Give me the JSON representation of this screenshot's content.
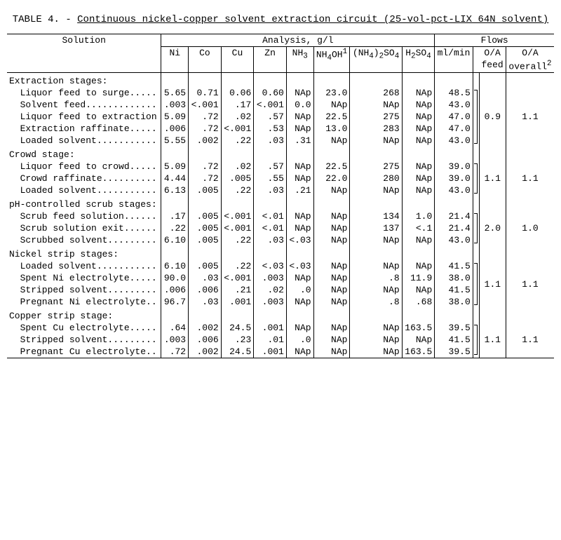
{
  "title_prefix": "TABLE 4. - ",
  "title_main": "Continuous nickel-copper solvent extraction circuit (25-vol-pct-LIX 64N solvent)",
  "headers": {
    "solution": "Solution",
    "analysis": "Analysis, g/l",
    "flows": "Flows",
    "ni": "Ni",
    "co": "Co",
    "cu": "Cu",
    "zn": "Zn",
    "nh3": "NH",
    "nh3_sub": "3",
    "nh4oh": "NH",
    "nh4oh_sub": "4",
    "nh4oh_tail": "OH",
    "nh4oh_sup": "1",
    "nh4so4_a": "(NH",
    "nh4so4_sub1": "4",
    "nh4so4_b": ")",
    "nh4so4_sub2": "2",
    "nh4so4_c": "SO",
    "nh4so4_sub3": "4",
    "h2so4_a": "H",
    "h2so4_sub1": "2",
    "h2so4_b": "SO",
    "h2so4_sub2": "4",
    "mlmin": "ml/min",
    "oa_feed_a": "O/A",
    "oa_feed_b": "feed",
    "oa_over_a": "O/A",
    "oa_over_b": "overall",
    "oa_over_sup": "2"
  },
  "sections": [
    {
      "name": "Extraction stages:",
      "oa_feed": "0.9",
      "oa_overall": "1.1",
      "rows": [
        {
          "label": "  Liquor feed to surge.....",
          "ni": "5.65",
          "co": "0.71",
          "cu": "0.06",
          "zn": "0.60",
          "nh3": "NAp",
          "nh4oh": "23.0",
          "nh4so4": "268",
          "h2so4": "NAp",
          "ml": "48.5"
        },
        {
          "label": "  Solvent feed.............",
          "ni": ".003",
          "co": "<.001",
          "cu": ".17",
          "zn": "<.001",
          "nh3": "0.0",
          "nh4oh": "NAp",
          "nh4so4": "NAp",
          "h2so4": "NAp",
          "ml": "43.0"
        },
        {
          "label": "  Liquor feed to extraction",
          "ni": "5.09",
          "co": ".72",
          "cu": ".02",
          "zn": ".57",
          "nh3": "NAp",
          "nh4oh": "22.5",
          "nh4so4": "275",
          "h2so4": "NAp",
          "ml": "47.0"
        },
        {
          "label": "  Extraction raffinate.....",
          "ni": ".006",
          "co": ".72",
          "cu": "<.001",
          "zn": ".53",
          "nh3": "NAp",
          "nh4oh": "13.0",
          "nh4so4": "283",
          "h2so4": "NAp",
          "ml": "47.0"
        },
        {
          "label": "  Loaded solvent...........",
          "ni": "5.55",
          "co": ".002",
          "cu": ".22",
          "zn": ".03",
          "nh3": ".31",
          "nh4oh": "NAp",
          "nh4so4": "NAp",
          "h2so4": "NAp",
          "ml": "43.0"
        }
      ]
    },
    {
      "name": "Crowd stage:",
      "oa_feed": "1.1",
      "oa_overall": "1.1",
      "rows": [
        {
          "label": "  Liquor feed to crowd.....",
          "ni": "5.09",
          "co": ".72",
          "cu": ".02",
          "zn": ".57",
          "nh3": "NAp",
          "nh4oh": "22.5",
          "nh4so4": "275",
          "h2so4": "NAp",
          "ml": "39.0"
        },
        {
          "label": "  Crowd raffinate..........",
          "ni": "4.44",
          "co": ".72",
          "cu": ".005",
          "zn": ".55",
          "nh3": "NAp",
          "nh4oh": "22.0",
          "nh4so4": "280",
          "h2so4": "NAp",
          "ml": "39.0"
        },
        {
          "label": "  Loaded solvent...........",
          "ni": "6.13",
          "co": ".005",
          "cu": ".22",
          "zn": ".03",
          "nh3": ".21",
          "nh4oh": "NAp",
          "nh4so4": "NAp",
          "h2so4": "NAp",
          "ml": "43.0"
        }
      ]
    },
    {
      "name": "pH-controlled scrub stages:",
      "oa_feed": "2.0",
      "oa_overall": "1.0",
      "rows": [
        {
          "label": "  Scrub feed solution......",
          "ni": ".17",
          "co": ".005",
          "cu": "<.001",
          "zn": "<.01",
          "nh3": "NAp",
          "nh4oh": "NAp",
          "nh4so4": "134",
          "h2so4": "1.0",
          "ml": "21.4"
        },
        {
          "label": "  Scrub solution exit......",
          "ni": ".22",
          "co": ".005",
          "cu": "<.001",
          "zn": "<.01",
          "nh3": "NAp",
          "nh4oh": "NAp",
          "nh4so4": "137",
          "h2so4": "<.1",
          "ml": "21.4"
        },
        {
          "label": "  Scrubbed solvent.........",
          "ni": "6.10",
          "co": ".005",
          "cu": ".22",
          "zn": ".03",
          "nh3": "<.03",
          "nh4oh": "NAp",
          "nh4so4": "NAp",
          "h2so4": "NAp",
          "ml": "43.0"
        }
      ]
    },
    {
      "name": "Nickel strip stages:",
      "oa_feed": "1.1",
      "oa_overall": "1.1",
      "rows": [
        {
          "label": "  Loaded solvent...........",
          "ni": "6.10",
          "co": ".005",
          "cu": ".22",
          "zn": "<.03",
          "nh3": "<.03",
          "nh4oh": "NAp",
          "nh4so4": "NAp",
          "h2so4": "NAp",
          "ml": "41.5"
        },
        {
          "label": "  Spent Ni electrolyte.....",
          "ni": "90.0",
          "co": ".03",
          "cu": "<.001",
          "zn": ".003",
          "nh3": "NAp",
          "nh4oh": "NAp",
          "nh4so4": ".8",
          "h2so4": "11.9",
          "ml": "38.0"
        },
        {
          "label": "  Stripped solvent.........",
          "ni": ".006",
          "co": ".006",
          "cu": ".21",
          "zn": ".02",
          "nh3": ".0",
          "nh4oh": "NAp",
          "nh4so4": "NAp",
          "h2so4": "NAp",
          "ml": "41.5"
        },
        {
          "label": "  Pregnant Ni electrolyte..",
          "ni": "96.7",
          "co": ".03",
          "cu": ".001",
          "zn": ".003",
          "nh3": "NAp",
          "nh4oh": "NAp",
          "nh4so4": ".8",
          "h2so4": ".68",
          "ml": "38.0"
        }
      ]
    },
    {
      "name": "Copper strip stage:",
      "oa_feed": "1.1",
      "oa_overall": "1.1",
      "rows": [
        {
          "label": "  Spent Cu electrolyte.....",
          "ni": ".64",
          "co": ".002",
          "cu": "24.5",
          "zn": ".001",
          "nh3": "NAp",
          "nh4oh": "NAp",
          "nh4so4": "NAp",
          "h2so4": "163.5",
          "ml": "39.5"
        },
        {
          "label": "  Stripped solvent.........",
          "ni": ".003",
          "co": ".006",
          "cu": ".23",
          "zn": ".01",
          "nh3": ".0",
          "nh4oh": "NAp",
          "nh4so4": "NAp",
          "h2so4": "NAp",
          "ml": "41.5"
        },
        {
          "label": "  Pregnant Cu electrolyte..",
          "ni": ".72",
          "co": ".002",
          "cu": "24.5",
          "zn": ".001",
          "nh3": "NAp",
          "nh4oh": "NAp",
          "nh4so4": "NAp",
          "h2so4": "163.5",
          "ml": "39.5"
        }
      ]
    }
  ]
}
